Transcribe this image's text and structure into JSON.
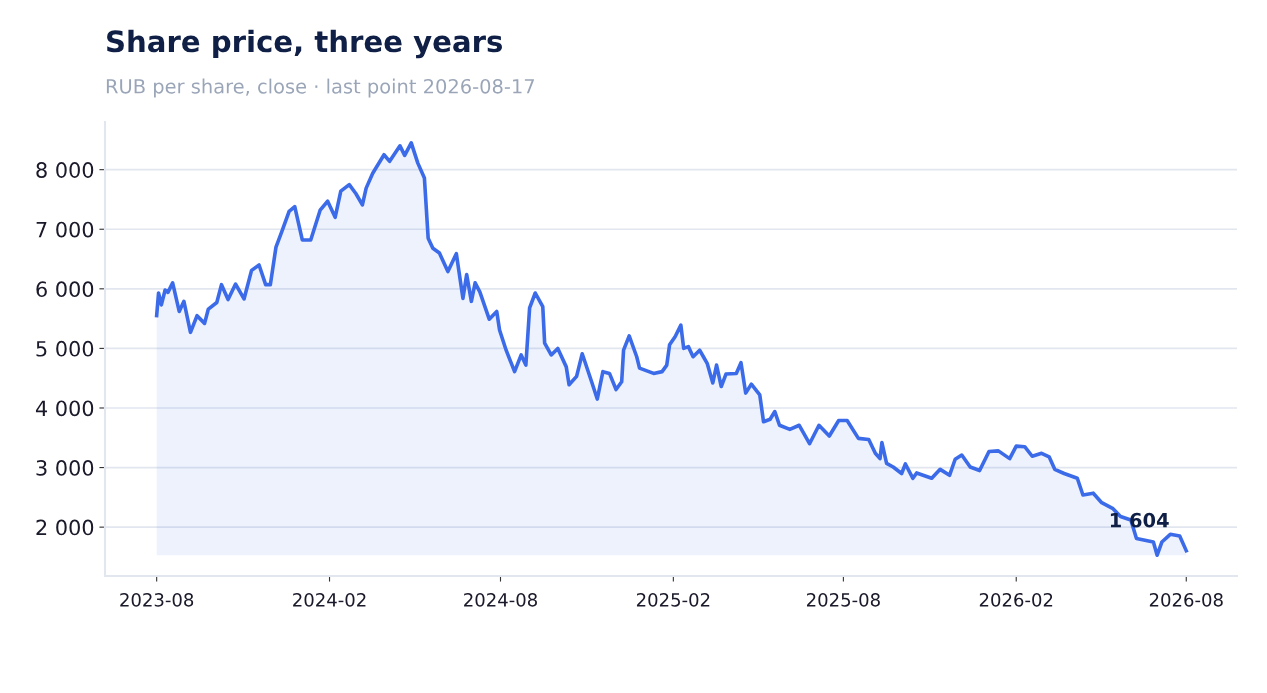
{
  "chart_data": {
    "type": "area",
    "title": "Share price, three years",
    "subtitle": "RUB per share, close · last point 2026-08-17",
    "series": [
      {
        "color": "#3b6be8",
        "x": [
          "2023-08-17",
          "2023-08-19",
          "2023-08-22",
          "2023-08-26",
          "2023-08-29",
          "2023-09-03",
          "2023-09-10",
          "2023-09-15",
          "2023-09-22",
          "2023-09-29",
          "2023-10-07",
          "2023-10-11",
          "2023-10-20",
          "2023-10-25",
          "2023-11-01",
          "2023-11-09",
          "2023-11-18",
          "2023-11-26",
          "2023-12-04",
          "2023-12-11",
          "2023-12-16",
          "2023-12-22",
          "2023-12-28",
          "2024-01-05",
          "2024-01-11",
          "2024-01-19",
          "2024-01-28",
          "2024-02-07",
          "2024-02-15",
          "2024-02-23",
          "2024-02-29",
          "2024-03-09",
          "2024-03-16",
          "2024-03-23",
          "2024-03-27",
          "2024-04-03",
          "2024-04-15",
          "2024-04-21",
          "2024-05-02",
          "2024-05-07",
          "2024-05-14",
          "2024-05-21",
          "2024-05-28",
          "2024-06-01",
          "2024-06-06",
          "2024-06-13",
          "2024-06-22",
          "2024-07-01",
          "2024-07-08",
          "2024-07-12",
          "2024-07-17",
          "2024-07-21",
          "2024-07-26",
          "2024-08-05",
          "2024-08-13",
          "2024-08-16",
          "2024-08-23",
          "2024-09-01",
          "2024-09-08",
          "2024-09-13",
          "2024-09-17",
          "2024-09-23",
          "2024-10-01",
          "2024-10-03",
          "2024-10-10",
          "2024-10-17",
          "2024-10-26",
          "2024-10-29",
          "2024-11-06",
          "2024-11-12",
          "2024-11-22",
          "2024-11-28",
          "2024-12-04",
          "2024-12-11",
          "2024-12-18",
          "2024-12-24",
          "2024-12-26",
          "2025-01-01",
          "2025-01-09",
          "2025-01-12",
          "2025-01-27",
          "2025-02-05",
          "2025-02-10",
          "2025-02-13",
          "2025-02-19",
          "2025-02-25",
          "2025-02-28",
          "2025-03-05",
          "2025-03-10",
          "2025-03-17",
          "2025-03-21",
          "2025-03-25",
          "2025-03-31",
          "2025-04-04",
          "2025-04-09",
          "2025-04-14",
          "2025-04-25",
          "2025-04-30",
          "2025-05-05",
          "2025-05-11",
          "2025-05-20",
          "2025-05-24",
          "2025-05-31",
          "2025-06-05",
          "2025-06-10",
          "2025-06-21",
          "2025-07-01",
          "2025-07-12",
          "2025-07-22",
          "2025-08-02",
          "2025-08-12",
          "2025-08-21",
          "2025-09-02",
          "2025-09-13",
          "2025-09-20",
          "2025-09-25",
          "2025-09-27",
          "2025-10-02",
          "2025-10-09",
          "2025-10-18",
          "2025-10-22",
          "2025-10-30",
          "2025-11-03",
          "2025-11-19",
          "2025-11-28",
          "2025-12-08",
          "2025-12-14",
          "2025-12-21",
          "2025-12-30",
          "2026-01-09",
          "2026-01-19",
          "2026-01-29",
          "2026-02-10",
          "2026-02-17",
          "2026-02-26",
          "2026-03-06",
          "2026-03-16",
          "2026-03-24",
          "2026-03-30",
          "2026-04-09",
          "2026-04-23",
          "2026-04-29",
          "2026-05-10",
          "2026-05-19",
          "2026-05-31",
          "2026-06-08",
          "2026-06-19",
          "2026-06-25",
          "2026-07-04",
          "2026-07-13",
          "2026-07-17",
          "2026-07-22",
          "2026-07-31",
          "2026-08-10",
          "2026-08-17"
        ],
        "values": [
          5550,
          5930,
          5730,
          5980,
          5940,
          6100,
          5620,
          5790,
          5270,
          5550,
          5420,
          5660,
          5770,
          6070,
          5820,
          6080,
          5830,
          6310,
          6400,
          6070,
          6070,
          6700,
          6950,
          7300,
          7380,
          6820,
          6820,
          7320,
          7470,
          7200,
          7640,
          7750,
          7600,
          7410,
          7690,
          7940,
          8250,
          8140,
          8400,
          8240,
          8450,
          8110,
          7860,
          6850,
          6680,
          6600,
          6290,
          6590,
          5840,
          6240,
          5790,
          6100,
          5950,
          5490,
          5620,
          5310,
          4970,
          4610,
          4890,
          4720,
          5680,
          5930,
          5700,
          5090,
          4890,
          5000,
          4690,
          4390,
          4530,
          4910,
          4440,
          4150,
          4610,
          4580,
          4310,
          4440,
          4970,
          5210,
          4860,
          4670,
          4580,
          4610,
          4720,
          5060,
          5200,
          5390,
          5000,
          5030,
          4860,
          4970,
          4860,
          4750,
          4420,
          4720,
          4360,
          4570,
          4580,
          4760,
          4250,
          4400,
          4220,
          3770,
          3810,
          3940,
          3710,
          3640,
          3710,
          3400,
          3710,
          3530,
          3790,
          3790,
          3490,
          3470,
          3240,
          3150,
          3420,
          3070,
          3010,
          2900,
          3060,
          2820,
          2910,
          2820,
          2970,
          2870,
          3140,
          3210,
          3010,
          2950,
          3270,
          3280,
          3150,
          3360,
          3350,
          3190,
          3240,
          3180,
          2970,
          2900,
          2820,
          2540,
          2570,
          2410,
          2310,
          2180,
          2120,
          1810,
          1780,
          1750,
          1530,
          1750,
          1880,
          1850,
          1604
        ]
      }
    ],
    "annotations": [
      {
        "text": "1 604",
        "x": "2026-08-17",
        "y": 1604
      }
    ],
    "xlim": [
      "2023-06-23",
      "2026-10-10"
    ],
    "xticks": [
      {
        "value": "2023-08-17",
        "label": "2023-08"
      },
      {
        "value": "2024-02-17",
        "label": "2024-02"
      },
      {
        "value": "2024-08-17",
        "label": "2024-08"
      },
      {
        "value": "2025-02-17",
        "label": "2025-02"
      },
      {
        "value": "2025-08-17",
        "label": "2025-08"
      },
      {
        "value": "2026-02-17",
        "label": "2026-02"
      },
      {
        "value": "2026-08-17",
        "label": "2026-08"
      }
    ],
    "ylim": [
      1180,
      8800
    ],
    "yticks": [
      {
        "value": 2000,
        "label": "2 000"
      },
      {
        "value": 3000,
        "label": "3 000"
      },
      {
        "value": 4000,
        "label": "4 000"
      },
      {
        "value": 5000,
        "label": "5 000"
      },
      {
        "value": 6000,
        "label": "6 000"
      },
      {
        "value": 7000,
        "label": "7 000"
      },
      {
        "value": 8000,
        "label": "8 000"
      }
    ],
    "grid": "y",
    "legend": false
  }
}
